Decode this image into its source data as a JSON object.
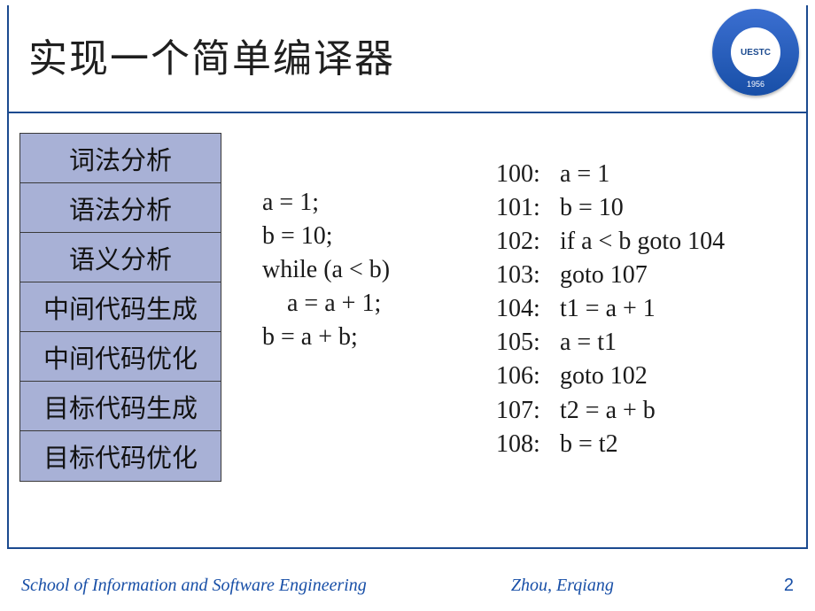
{
  "title": "实现一个简单编译器",
  "logo": {
    "text": "UESTC",
    "year": "1956",
    "bg_gradient_from": "#3b6fd1",
    "bg_gradient_to": "#184fa7"
  },
  "phases": {
    "bg_color": "#a8b1d6",
    "border_color": "#3a3a3a",
    "items": [
      "词法分析",
      "语法分析",
      "语义分析",
      "中间代码生成",
      "中间代码优化",
      "目标代码生成",
      "目标代码优化"
    ]
  },
  "source_code": {
    "fontsize": 28,
    "lines": [
      "a = 1;",
      "b = 10;",
      "while (a < b)",
      "    a = a + 1;",
      "b = a + b;"
    ]
  },
  "intermediate_code": {
    "fontsize": 28,
    "lines": [
      {
        "label": "100:",
        "instr": "a = 1"
      },
      {
        "label": "101:",
        "instr": "b = 10"
      },
      {
        "label": "102:",
        "instr": "if a < b goto 104"
      },
      {
        "label": "103:",
        "instr": "goto 107"
      },
      {
        "label": "104:",
        "instr": "t1 = a + 1"
      },
      {
        "label": "105:",
        "instr": "a = t1"
      },
      {
        "label": "106:",
        "instr": "goto 102"
      },
      {
        "label": "107:",
        "instr": "t2 = a + b"
      },
      {
        "label": "108:",
        "instr": "b = t2"
      }
    ]
  },
  "footer": {
    "left": "School of Information and Software Engineering",
    "center": "Zhou, Erqiang",
    "page": "2",
    "text_color": "#184fa7"
  },
  "colors": {
    "frame_border": "#1b4a8f",
    "background": "#ffffff",
    "text": "#1a1a1a"
  }
}
